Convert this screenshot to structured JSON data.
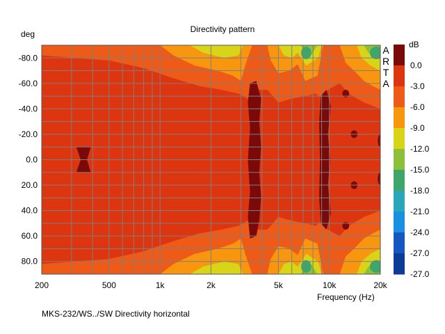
{
  "chart_data": {
    "type": "heatmap",
    "title": "Directivity pattern",
    "ylabel": "deg",
    "xlabel": "Frequency (Hz)",
    "caption": "MKS-232/WS../SW Directivity horizontal",
    "brand_letters": [
      "A",
      "R",
      "T",
      "A"
    ],
    "x_scale": "log",
    "xlim": [
      200,
      20000
    ],
    "ylim": [
      -90,
      90
    ],
    "y_reversed": true,
    "x_ticks": [
      {
        "value": 200,
        "label": "200"
      },
      {
        "value": 500,
        "label": "500"
      },
      {
        "value": 1000,
        "label": "1k"
      },
      {
        "value": 2000,
        "label": "2k"
      },
      {
        "value": 5000,
        "label": "5k"
      },
      {
        "value": 10000,
        "label": "10k"
      },
      {
        "value": 20000,
        "label": "20k"
      }
    ],
    "y_ticks": [
      {
        "value": -80,
        "label": "-80.0"
      },
      {
        "value": -60,
        "label": "-60.0"
      },
      {
        "value": -40,
        "label": "-40.0"
      },
      {
        "value": -20,
        "label": "-20.0"
      },
      {
        "value": 0,
        "label": "0.0"
      },
      {
        "value": 20,
        "label": "20.0"
      },
      {
        "value": 40,
        "label": "40.0"
      },
      {
        "value": 60,
        "label": "60.0"
      },
      {
        "value": 80,
        "label": "80.0"
      }
    ],
    "grid": true,
    "colorbar": {
      "unit": "dB",
      "range": [
        -27,
        3
      ],
      "levels": [
        {
          "label": "",
          "color": "#7a0a0a"
        },
        {
          "label": "0.0",
          "color": "#dc3510"
        },
        {
          "label": "-3.0",
          "color": "#ee5a18"
        },
        {
          "label": "-6.0",
          "color": "#f8960f"
        },
        {
          "label": "-9.0",
          "color": "#d8d418"
        },
        {
          "label": "-12.0",
          "color": "#8cbf3a"
        },
        {
          "label": "-15.0",
          "color": "#3ea66a"
        },
        {
          "label": "-18.0",
          "color": "#2aa6b8"
        },
        {
          "label": "-21.0",
          "color": "#1a90e0"
        },
        {
          "label": "-24.0",
          "color": "#1656c0"
        },
        {
          "label": "-27.0",
          "color": "#0c3c98"
        }
      ],
      "bottom_label": "-27.0"
    },
    "band_colors": {
      "max": "#7a0a0a",
      "b0": "#dc3510",
      "b3": "#ee5a18",
      "b6": "#f8960f",
      "b9": "#d8d418",
      "b12": "#8cbf3a",
      "b15": "#3ea66a"
    }
  }
}
